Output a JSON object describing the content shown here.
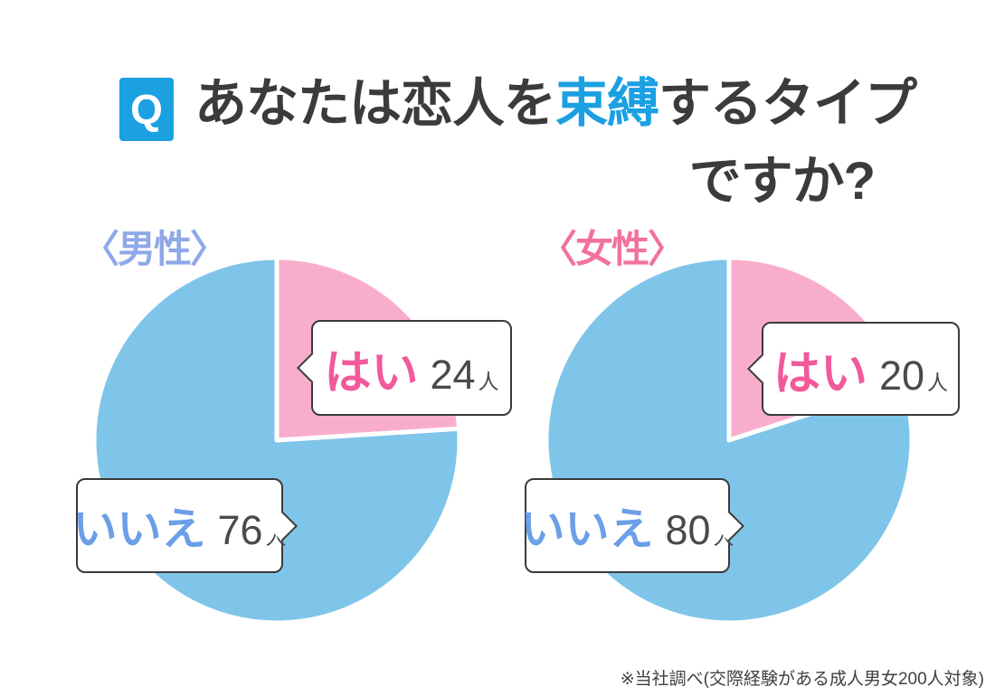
{
  "title": {
    "q_badge": "Q",
    "line1_before": "あなたは恋人を",
    "line1_highlight": "束縛",
    "line1_after": "するタイプ",
    "line2": "ですか?",
    "highlight_color": "#1BA0E2"
  },
  "charts": [
    {
      "group_label": "〈男性〉",
      "yes_label": "はい",
      "yes_value": 24,
      "no_label": "いいえ",
      "no_value": 76,
      "unit": "人"
    },
    {
      "group_label": "〈女性〉",
      "yes_label": "はい",
      "yes_value": 20,
      "no_label": "いいえ",
      "no_value": 80,
      "unit": "人"
    }
  ],
  "footnote": "※当社調べ(交際経験がある成人男女200人対象)",
  "colors": {
    "accent_blue": "#1BA0E2",
    "pie_yes_pink": "#F9ADCC",
    "pie_no_blue": "#7FC5E9",
    "yes_text": "#F2599A",
    "no_text": "#6B9FE8",
    "male_label": "#8FA8E8",
    "female_label": "#F2729F",
    "title_text": "#3B3B3B",
    "number_text": "#4A4A4A",
    "callout_border": "#3A3A3A"
  },
  "chart_data": [
    {
      "type": "pie",
      "title": "〈男性〉",
      "labels": [
        "はい",
        "いいえ"
      ],
      "values": [
        24,
        76
      ],
      "unit": "人",
      "colors": [
        "#F9ADCC",
        "#7FC5E9"
      ],
      "start_angle": "top",
      "direction": "clockwise",
      "total": 100
    },
    {
      "type": "pie",
      "title": "〈女性〉",
      "labels": [
        "はい",
        "いいえ"
      ],
      "values": [
        20,
        80
      ],
      "unit": "人",
      "colors": [
        "#F9ADCC",
        "#7FC5E9"
      ],
      "start_angle": "top",
      "direction": "clockwise",
      "total": 100
    }
  ]
}
